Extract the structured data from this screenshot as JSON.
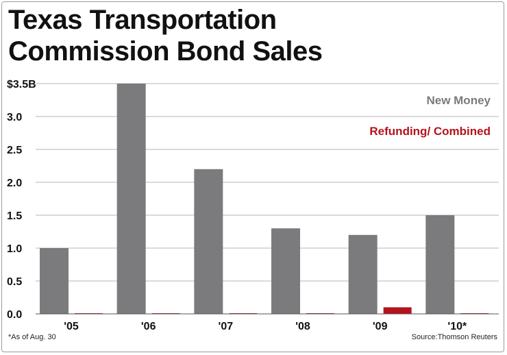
{
  "title_lines": [
    "Texas Transportation",
    "Commission Bond Sales"
  ],
  "footnote": "*As of Aug. 30",
  "source": "Source:Thomson Reuters",
  "chart_data": {
    "type": "bar",
    "title": "Texas Transportation Commission Bond Sales",
    "categories": [
      "'05",
      "'06",
      "'07",
      "'08",
      "'09",
      "'10*"
    ],
    "series": [
      {
        "name": "New Money",
        "color": "#7b7b7d",
        "values": [
          1.0,
          3.5,
          2.2,
          1.3,
          1.2,
          1.5
        ]
      },
      {
        "name": "Refunding/ Combined",
        "color": "#b5121b",
        "values": [
          0,
          0,
          0,
          0,
          0.1,
          0
        ]
      }
    ],
    "yticks": [
      {
        "value": 0,
        "label": "0.0"
      },
      {
        "value": 0.5,
        "label": "0.5"
      },
      {
        "value": 1.0,
        "label": "1.0"
      },
      {
        "value": 1.5,
        "label": "1.5"
      },
      {
        "value": 2.0,
        "label": "2.0"
      },
      {
        "value": 2.5,
        "label": "2.5"
      },
      {
        "value": 3.0,
        "label": "3.0"
      },
      {
        "value": 3.5,
        "label": "$3.5B"
      }
    ],
    "ylim": [
      0,
      3.5
    ],
    "grid": true,
    "legend": "top-right",
    "xlabel": "",
    "ylabel": ""
  }
}
